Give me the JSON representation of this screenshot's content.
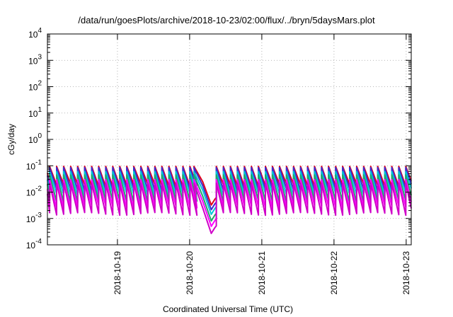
{
  "chart_data": {
    "type": "line",
    "title": "/data/run/goesPlots/archive/2018-10-23/02:00/flux/../bryn/5daysMars.plot",
    "xlabel": "Coordinated Universal Time (UTC)",
    "ylabel": "cGy/day",
    "y_scale": "log",
    "grid": true,
    "legend": "none",
    "xlim": [
      -0.97,
      4.07
    ],
    "ylim_exponents": [
      -4,
      4
    ],
    "y_ticks": [
      {
        "base": "10",
        "exp": "-4"
      },
      {
        "base": "10",
        "exp": "-3"
      },
      {
        "base": "10",
        "exp": "-2"
      },
      {
        "base": "10",
        "exp": "-1"
      },
      {
        "base": "10",
        "exp": "0"
      },
      {
        "base": "10",
        "exp": "1"
      },
      {
        "base": "10",
        "exp": "2"
      },
      {
        "base": "10",
        "exp": "3"
      },
      {
        "base": "10",
        "exp": "4"
      }
    ],
    "x_ticks": [
      {
        "pos": 0,
        "label": "2018-10-19"
      },
      {
        "pos": 1,
        "label": "2018-10-20"
      },
      {
        "pos": 2,
        "label": "2018-10-21"
      },
      {
        "pos": 3,
        "label": "2018-10-22"
      },
      {
        "pos": 4,
        "label": "2018-10-23"
      }
    ],
    "cycle_days": 0.0972,
    "gap": {
      "start": 1.06,
      "min_at": 1.3,
      "end": 1.37
    },
    "series": [
      {
        "color": "#e0001c",
        "peak": 0.095,
        "trough": 0.018
      },
      {
        "color": "#3a2fd0",
        "peak": 0.085,
        "trough": 0.012
      },
      {
        "color": "#00c8d8",
        "peak": 0.06,
        "trough": 0.008
      },
      {
        "color": "#1fa86a",
        "peak": 0.045,
        "trough": 0.0045
      },
      {
        "color": "#ff00ff",
        "peak": 0.03,
        "trough": 0.0028
      },
      {
        "color": "#d000c8",
        "peak": 0.022,
        "trough": 0.0015
      }
    ]
  }
}
